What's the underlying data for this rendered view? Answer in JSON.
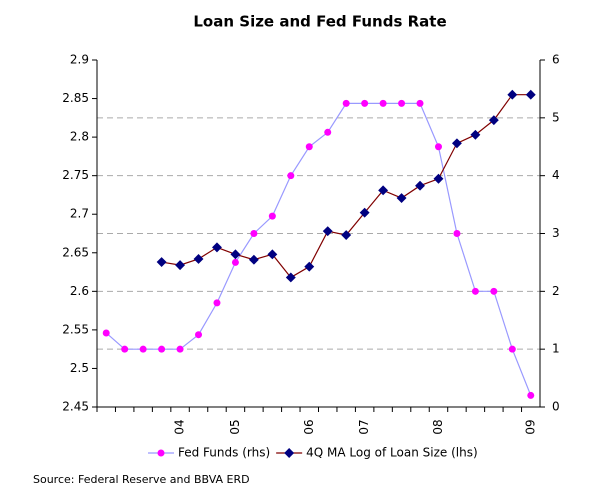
{
  "chart_data": {
    "type": "line",
    "title": "Loan Size and Fed Funds Rate",
    "source": "Source: Federal Reserve and BBVA ERD",
    "categories": [
      null,
      null,
      null,
      null,
      "04",
      null,
      null,
      "05",
      null,
      null,
      null,
      "06",
      null,
      null,
      "07",
      null,
      null,
      null,
      "08",
      null,
      null,
      null,
      null,
      "09"
    ],
    "series": [
      {
        "name": "Fed Funds (rhs)",
        "color": "#9999ff",
        "marker_color": "#ff00ff",
        "axis": "y2",
        "values": [
          1.28,
          1,
          1,
          1,
          1,
          1.25,
          1.8,
          2.5,
          3,
          3.3,
          4,
          4.5,
          4.75,
          5.25,
          5.25,
          5.25,
          5.25,
          5.25,
          4.5,
          3,
          2,
          2,
          1,
          0.2
        ]
      },
      {
        "name": "4Q MA Log of Loan Size (lhs)",
        "color": "#800000",
        "marker_color": "#000080",
        "values": [
          null,
          null,
          null,
          2.638,
          2.634,
          2.642,
          2.657,
          2.648,
          2.641,
          2.648,
          2.618,
          2.632,
          2.678,
          2.673,
          2.702,
          2.731,
          2.721,
          2.737,
          2.746,
          2.792,
          2.803,
          2.822,
          2.855,
          2.855
        ]
      }
    ],
    "ylim": [
      2.45,
      2.9
    ],
    "yticks": [
      2.45,
      2.5,
      2.55,
      2.6,
      2.65,
      2.7,
      2.75,
      2.8,
      2.85,
      2.9
    ],
    "y2lim": [
      0,
      6
    ],
    "y2ticks": [
      0,
      1,
      2,
      3,
      4,
      5,
      6
    ],
    "grid": "y2"
  }
}
